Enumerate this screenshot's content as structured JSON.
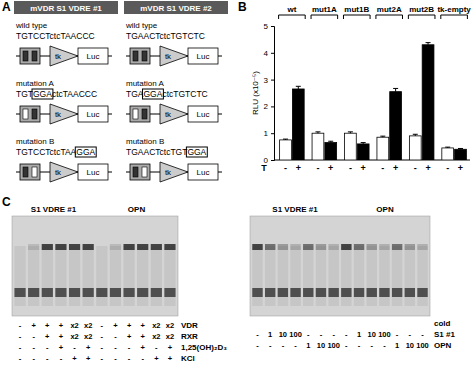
{
  "panel_a": {
    "letter": "A",
    "promoter": "tk",
    "reporter": "Luc",
    "columns": [
      {
        "title": "mVDR S1 VDRE #1",
        "rows": [
          {
            "label": "wild type",
            "sequence": [
              {
                "text": "TGTCCTctcTAACCC"
              }
            ]
          },
          {
            "label": "mutation A",
            "sequence": [
              {
                "text": "TGT"
              },
              {
                "text": "GGA",
                "boxed": true
              },
              {
                "text": "ctcTAACCC"
              }
            ]
          },
          {
            "label": "mutation B",
            "sequence": [
              {
                "text": "TGTCCTctcTAA"
              },
              {
                "text": "GGA",
                "boxed": true
              }
            ]
          }
        ]
      },
      {
        "title": "mVDR S1 VDRE #2",
        "rows": [
          {
            "label": "wild type",
            "sequence": [
              {
                "text": "TGAACTctcTGTCTC"
              }
            ]
          },
          {
            "label": "mutation A",
            "sequence": [
              {
                "text": "TGA"
              },
              {
                "text": "GGA",
                "boxed": true
              },
              {
                "text": "ctcTGTCTC"
              }
            ]
          },
          {
            "label": "mutation B",
            "sequence": [
              {
                "text": "TGAACTctcTGT"
              },
              {
                "text": "GGA",
                "boxed": true
              }
            ]
          }
        ]
      }
    ]
  },
  "panel_b": {
    "letter": "B"
  },
  "chart_data": {
    "type": "bar",
    "categories": [
      "wt",
      "mut1A",
      "mut1B",
      "mut2A",
      "mut2B",
      "tk-empty"
    ],
    "y_label": "RLU (x10⁻⁵)",
    "x_label": "T",
    "ylim": [
      0,
      5
    ],
    "yticks": [
      0,
      1,
      2,
      3,
      4,
      5
    ],
    "series": [
      {
        "name": "-",
        "color": "#ffffff",
        "values": [
          0.75,
          1.0,
          1.0,
          0.85,
          0.9,
          0.45
        ],
        "errors": [
          0.03,
          0.05,
          0.05,
          0.04,
          0.06,
          0.03
        ]
      },
      {
        "name": "+",
        "color": "#000000",
        "values": [
          2.65,
          0.65,
          0.6,
          2.55,
          4.3,
          0.4
        ],
        "errors": [
          0.1,
          0.05,
          0.05,
          0.12,
          0.08,
          0.03
        ]
      }
    ]
  },
  "panel_c": {
    "letter": "C",
    "gels": [
      {
        "probes": [
          "S1 VDRE #1",
          "OPN"
        ],
        "rows": [
          {
            "label": "VDR",
            "values": [
              "-",
              "+",
              "+",
              "+",
              "x2",
              "x2",
              "-",
              "+",
              "+",
              "+",
              "x2",
              "x2"
            ]
          },
          {
            "label": "RXR",
            "values": [
              "-",
              "-",
              "+",
              "+",
              "x2",
              "x2",
              "-",
              "-",
              "+",
              "+",
              "x2",
              "x2"
            ]
          },
          {
            "label": "1,25(OH)₂D₃",
            "values": [
              "-",
              "-",
              "-",
              "+",
              "-",
              "+",
              "-",
              "-",
              "-",
              "+",
              "-",
              "+"
            ]
          },
          {
            "label": "KCl",
            "values": [
              "-",
              "-",
              "-",
              "-",
              "+",
              "+",
              "-",
              "-",
              "-",
              "-",
              "+",
              "+"
            ]
          }
        ]
      },
      {
        "probes": [
          "S1 VDRE #1",
          "OPN"
        ],
        "header": "cold",
        "rows": [
          {
            "label": "S1 #1",
            "values": [
              "-",
              "1",
              "10",
              "100",
              "-",
              "-",
              "-",
              "-",
              "1",
              "10",
              "100",
              "-",
              "-",
              "-"
            ]
          },
          {
            "label": "OPN",
            "values": [
              "-",
              "-",
              "-",
              "-",
              "1",
              "10",
              "100",
              "-",
              "-",
              "-",
              "-",
              "1",
              "10",
              "100"
            ]
          }
        ]
      }
    ]
  }
}
